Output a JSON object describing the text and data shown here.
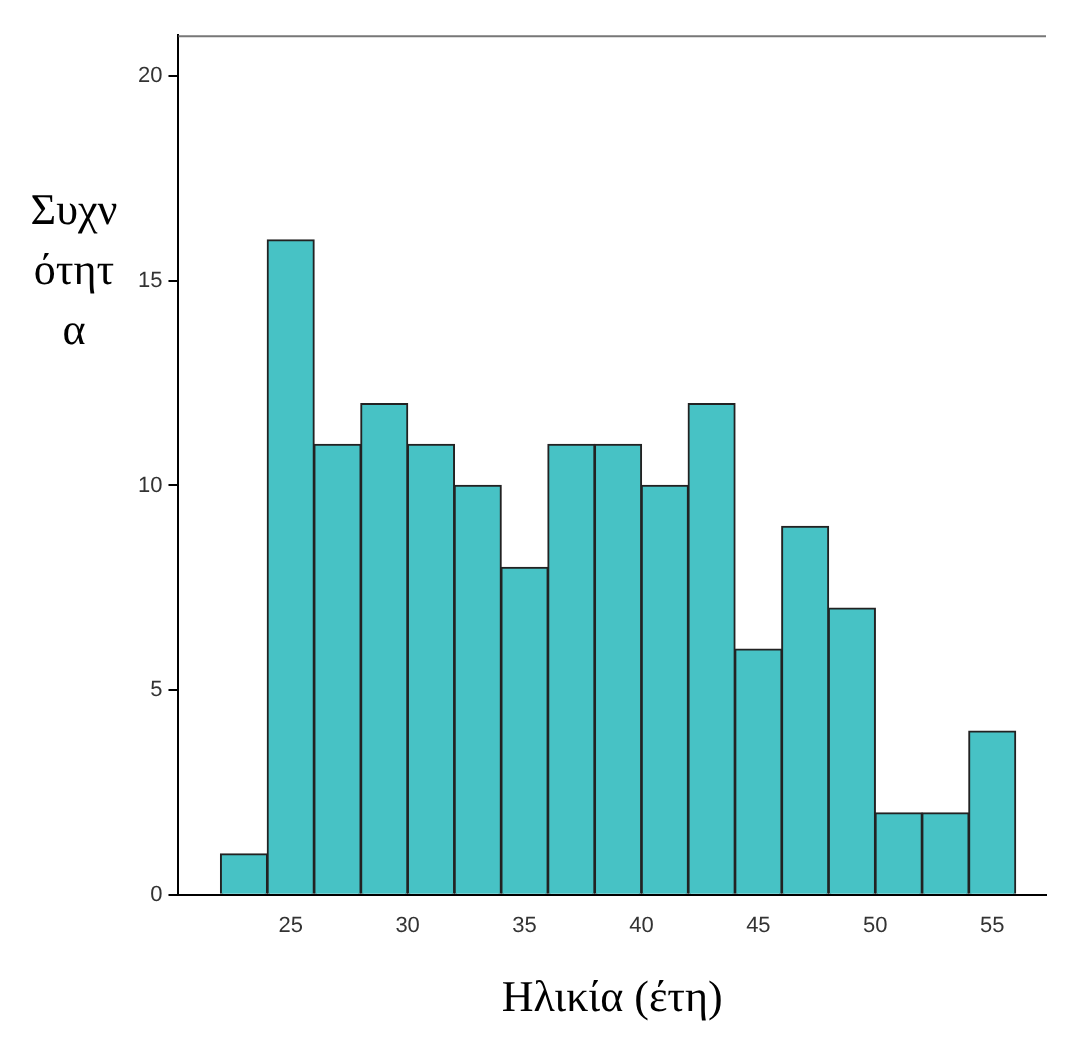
{
  "chart_data": {
    "type": "histogram",
    "xlabel": "Ηλικία (έτη)",
    "ylabel": "Συχνότητα",
    "color": "#47c2c5",
    "bins": [
      22,
      24,
      26,
      28,
      30,
      32,
      34,
      36,
      38,
      40,
      42,
      44,
      46,
      48,
      50,
      52,
      54,
      56
    ],
    "values": [
      1,
      16,
      11,
      12,
      11,
      10,
      8,
      11,
      11,
      10,
      12,
      6,
      9,
      7,
      2,
      2,
      4
    ],
    "xlim": [
      20.2,
      57.3
    ],
    "xticks": [
      25,
      30,
      35,
      40,
      45,
      50,
      55
    ],
    "ylim": [
      0,
      21
    ],
    "yticks": [
      0,
      5,
      10,
      15,
      20
    ],
    "grid": false,
    "legend": false
  }
}
